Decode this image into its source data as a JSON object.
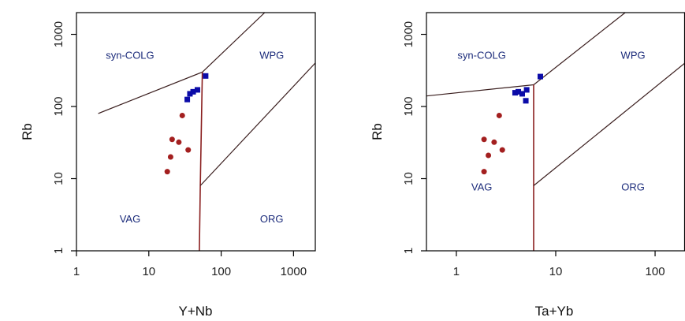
{
  "colors": {
    "field_label": "#1a2a7a",
    "boundary": "#3a1e1e",
    "boundary_vertical": "#8a1f1f",
    "series_blue": "#0b0ba8",
    "series_red": "#a31f1f",
    "axis": "#000000"
  },
  "chart_data": [
    {
      "type": "scatter",
      "log_x": true,
      "log_y": true,
      "xlim": [
        1,
        2000
      ],
      "ylim": [
        1,
        2000
      ],
      "xlabel": "Y+Nb",
      "ylabel": "Rb",
      "x_ticks": [
        1,
        10,
        100,
        1000
      ],
      "x_tick_labels": [
        "1",
        "10",
        "100",
        "1000"
      ],
      "y_ticks": [
        1,
        10,
        100,
        1000
      ],
      "y_tick_labels": [
        "1",
        "10",
        "100",
        "1000"
      ],
      "field_labels": [
        {
          "text": "syn-COLG",
          "x": 5.5,
          "y": 500
        },
        {
          "text": "WPG",
          "x": 500,
          "y": 500
        },
        {
          "text": "VAG",
          "x": 5.5,
          "y": 2.7
        },
        {
          "text": "ORG",
          "x": 500,
          "y": 2.7
        }
      ],
      "boundaries": [
        {
          "name": "syn-COLG / VAG",
          "points": [
            [
              2,
              80
            ],
            [
              55,
              300
            ]
          ]
        },
        {
          "name": "syn-COLG / WPG",
          "points": [
            [
              55,
              300
            ],
            [
              400,
              2000
            ]
          ]
        },
        {
          "name": "VAG / WPG",
          "points": [
            [
              55,
              300
            ],
            [
              51.5,
              8
            ],
            [
              50,
              1
            ]
          ]
        },
        {
          "name": "WPG / ORG",
          "points": [
            [
              51.5,
              8
            ],
            [
              2000,
              400
            ]
          ]
        }
      ],
      "series": [
        {
          "marker": "square",
          "color": "#0b0ba8",
          "x": [
            34,
            37,
            41,
            47,
            61
          ],
          "y": [
            125,
            150,
            160,
            170,
            265
          ]
        },
        {
          "marker": "circle",
          "color": "#a31f1f",
          "x": [
            18,
            20,
            21,
            26,
            29,
            35
          ],
          "y": [
            12.5,
            20,
            35,
            32,
            75,
            25
          ]
        }
      ]
    },
    {
      "type": "scatter",
      "log_x": true,
      "log_y": true,
      "xlim": [
        0.5,
        200
      ],
      "ylim": [
        1,
        2000
      ],
      "xlabel": "Ta+Yb",
      "ylabel": "Rb",
      "x_ticks": [
        1,
        10,
        100
      ],
      "x_tick_labels": [
        "1",
        "10",
        "100"
      ],
      "y_ticks": [
        1,
        10,
        100,
        1000
      ],
      "y_tick_labels": [
        "1",
        "10",
        "100",
        "1000"
      ],
      "field_labels": [
        {
          "text": "syn-COLG",
          "x": 1.8,
          "y": 500
        },
        {
          "text": "WPG",
          "x": 60,
          "y": 500
        },
        {
          "text": "VAG",
          "x": 1.8,
          "y": 7.5
        },
        {
          "text": "ORG",
          "x": 60,
          "y": 7.5
        }
      ],
      "boundaries": [
        {
          "name": "syn-COLG / VAG",
          "points": [
            [
              0.5,
              140
            ],
            [
              6,
              200
            ]
          ]
        },
        {
          "name": "syn-COLG / WPG",
          "points": [
            [
              6,
              200
            ],
            [
              50,
              2000
            ]
          ]
        },
        {
          "name": "VAG / WPG",
          "points": [
            [
              6,
              200
            ],
            [
              6,
              8
            ],
            [
              6,
              1
            ]
          ]
        },
        {
          "name": "WPG / ORG",
          "points": [
            [
              6,
              8
            ],
            [
              200,
              400
            ]
          ]
        }
      ],
      "series": [
        {
          "marker": "square",
          "color": "#0b0ba8",
          "x": [
            3.9,
            4.2,
            4.6,
            5.1,
            5.0,
            7.0
          ],
          "y": [
            155,
            160,
            150,
            170,
            120,
            260
          ]
        },
        {
          "marker": "circle",
          "color": "#a31f1f",
          "x": [
            1.9,
            1.9,
            2.1,
            2.4,
            2.7,
            2.9
          ],
          "y": [
            12.5,
            35,
            21,
            32,
            75,
            25
          ]
        }
      ]
    }
  ]
}
